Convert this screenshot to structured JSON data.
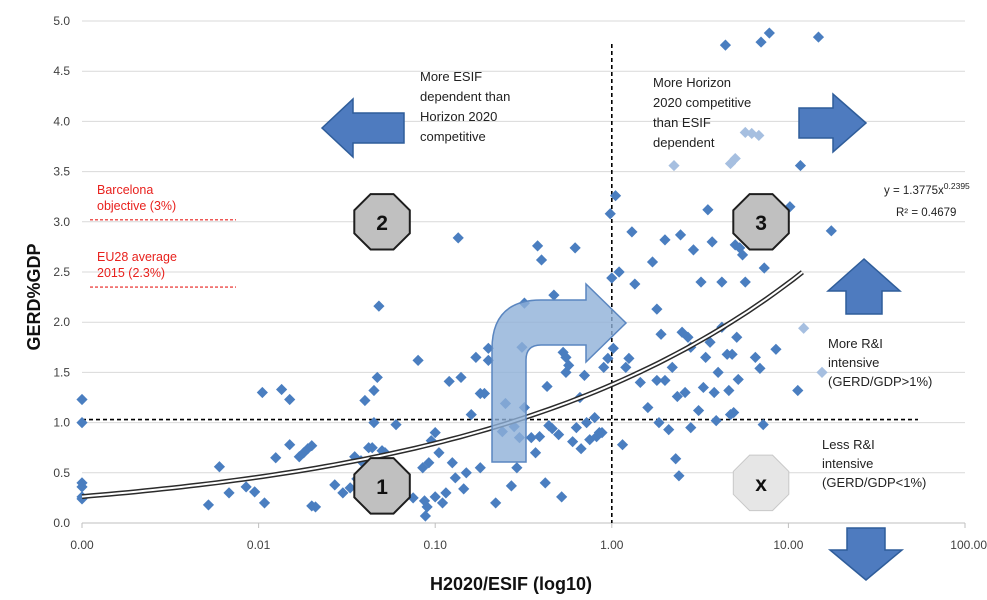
{
  "chart_data": {
    "type": "scatter",
    "xlabel": "H2020/ESIF (log10)",
    "ylabel": "GERD%GDP",
    "x_scale": "log",
    "xlim": [
      0.001,
      100
    ],
    "ylim": [
      0,
      5
    ],
    "x_ticks": [
      "0.00",
      "0.01",
      "0.10",
      "1.00",
      "10.00",
      "100.00"
    ],
    "y_ticks": [
      "0.0",
      "0.5",
      "1.0",
      "1.5",
      "2.0",
      "2.5",
      "3.0",
      "3.5",
      "4.0",
      "4.5",
      "5.0"
    ],
    "grid": "horizontal",
    "colors": {
      "points": "#4a7ec0",
      "light_points": "#a6bfe0",
      "trend": "#2b2b2b",
      "reference": "#e8211d",
      "arrow": "#4e7bbf",
      "gray_octagon": "#c0c0c0",
      "light_octagon": "#e6e6e6"
    },
    "trendline": {
      "equation": "y = 1.3775x",
      "exponent": "0.2395",
      "r2": "R² = 0.4679",
      "a": 1.3775,
      "b": 0.2395,
      "x_range": [
        0.001,
        12
      ]
    },
    "reference_lines": [
      {
        "label_lines": [
          "Barcelona",
          "objective  (3%)"
        ],
        "y": 3.02
      },
      {
        "label_lines": [
          "EU28 average",
          "2015 (2.3%)"
        ],
        "y": 2.35
      }
    ],
    "threshold_lines": {
      "x": 1.0,
      "y": 1.03
    },
    "annotations": {
      "top_left": [
        "More ESIF",
        "dependent than",
        "Horizon 2020",
        "competitive"
      ],
      "top_right": [
        "More Horizon",
        "2020 competitive",
        "than ESIF",
        "dependent"
      ],
      "more_intensive": [
        "More R&I",
        "intensive",
        "(GERD/GDP>1%)"
      ],
      "less_intensive": [
        "Less R&I",
        "intensive",
        "(GERD/GDP<1%)"
      ]
    },
    "regions": [
      {
        "label": "1",
        "x": 0.05,
        "y": 0.37,
        "style": "gray"
      },
      {
        "label": "2",
        "x": 0.05,
        "y": 3.0,
        "style": "gray"
      },
      {
        "label": "3",
        "x": 7.0,
        "y": 3.0,
        "style": "gray"
      },
      {
        "label": "x",
        "x": 7.0,
        "y": 0.4,
        "style": "light"
      }
    ],
    "points": [
      [
        0.001,
        1.23
      ],
      [
        0.001,
        1.0
      ],
      [
        0.001,
        0.4
      ],
      [
        0.001,
        0.36
      ],
      [
        0.001,
        0.26
      ],
      [
        0.001,
        0.24
      ],
      [
        0.0052,
        0.18
      ],
      [
        0.006,
        0.56
      ],
      [
        0.0068,
        0.3
      ],
      [
        0.0085,
        0.36
      ],
      [
        0.0095,
        0.31
      ],
      [
        0.0105,
        1.3
      ],
      [
        0.0108,
        0.2
      ],
      [
        0.0125,
        0.65
      ],
      [
        0.0135,
        1.33
      ],
      [
        0.015,
        1.23
      ],
      [
        0.015,
        0.78
      ],
      [
        0.017,
        0.66
      ],
      [
        0.018,
        0.7
      ],
      [
        0.019,
        0.74
      ],
      [
        0.02,
        0.77
      ],
      [
        0.02,
        0.17
      ],
      [
        0.021,
        0.16
      ],
      [
        0.027,
        0.38
      ],
      [
        0.03,
        0.3
      ],
      [
        0.033,
        0.35
      ],
      [
        0.035,
        0.66
      ],
      [
        0.036,
        0.44
      ],
      [
        0.038,
        0.62
      ],
      [
        0.04,
        1.22
      ],
      [
        0.042,
        0.75
      ],
      [
        0.044,
        0.75
      ],
      [
        0.045,
        1.0
      ],
      [
        0.045,
        1.32
      ],
      [
        0.047,
        1.45
      ],
      [
        0.048,
        2.16
      ],
      [
        0.05,
        0.72
      ],
      [
        0.052,
        0.7
      ],
      [
        0.054,
        0.46
      ],
      [
        0.058,
        0.3
      ],
      [
        0.06,
        0.98
      ],
      [
        0.065,
        0.32
      ],
      [
        0.075,
        0.25
      ],
      [
        0.08,
        1.62
      ],
      [
        0.085,
        0.55
      ],
      [
        0.087,
        0.22
      ],
      [
        0.088,
        0.07
      ],
      [
        0.09,
        0.16
      ],
      [
        0.092,
        0.6
      ],
      [
        0.095,
        0.82
      ],
      [
        0.1,
        0.9
      ],
      [
        0.1,
        0.26
      ],
      [
        0.105,
        0.7
      ],
      [
        0.11,
        0.2
      ],
      [
        0.115,
        0.3
      ],
      [
        0.12,
        1.41
      ],
      [
        0.125,
        0.6
      ],
      [
        0.13,
        0.45
      ],
      [
        0.135,
        2.84
      ],
      [
        0.14,
        1.45
      ],
      [
        0.145,
        0.34
      ],
      [
        0.15,
        0.5
      ],
      [
        0.16,
        1.08
      ],
      [
        0.17,
        1.65
      ],
      [
        0.18,
        0.55
      ],
      [
        0.18,
        1.29
      ],
      [
        0.19,
        1.29
      ],
      [
        0.2,
        1.62
      ],
      [
        0.2,
        1.74
      ],
      [
        0.22,
        0.2
      ],
      [
        0.24,
        0.91
      ],
      [
        0.25,
        1.19
      ],
      [
        0.27,
        0.37
      ],
      [
        0.28,
        0.96
      ],
      [
        0.29,
        0.55
      ],
      [
        0.3,
        0.85
      ],
      [
        0.31,
        1.75
      ],
      [
        0.32,
        2.19
      ],
      [
        0.32,
        1.15
      ],
      [
        0.35,
        0.85
      ],
      [
        0.37,
        0.7
      ],
      [
        0.38,
        2.76
      ],
      [
        0.39,
        0.86
      ],
      [
        0.4,
        2.62
      ],
      [
        0.42,
        0.4
      ],
      [
        0.43,
        1.36
      ],
      [
        0.44,
        0.97
      ],
      [
        0.46,
        0.94
      ],
      [
        0.47,
        2.27
      ],
      [
        0.5,
        0.88
      ],
      [
        0.52,
        0.26
      ],
      [
        0.53,
        1.7
      ],
      [
        0.55,
        1.65
      ],
      [
        0.55,
        1.5
      ],
      [
        0.57,
        1.57
      ],
      [
        0.6,
        0.81
      ],
      [
        0.62,
        2.74
      ],
      [
        0.63,
        0.95
      ],
      [
        0.66,
        1.25
      ],
      [
        0.67,
        0.74
      ],
      [
        0.7,
        1.47
      ],
      [
        0.72,
        1.0
      ],
      [
        0.75,
        0.83
      ],
      [
        0.8,
        1.05
      ],
      [
        0.82,
        0.86
      ],
      [
        0.85,
        0.9
      ],
      [
        0.88,
        0.9
      ],
      [
        0.9,
        1.55
      ],
      [
        0.95,
        1.64
      ],
      [
        0.98,
        3.08
      ],
      [
        1.0,
        2.44
      ],
      [
        1.02,
        1.74
      ],
      [
        1.05,
        3.26
      ],
      [
        1.1,
        2.5
      ],
      [
        1.15,
        0.78
      ],
      [
        1.2,
        1.55
      ],
      [
        1.25,
        1.64
      ],
      [
        1.3,
        2.9
      ],
      [
        1.35,
        2.38
      ],
      [
        1.45,
        1.4
      ],
      [
        1.6,
        1.15
      ],
      [
        1.7,
        2.6
      ],
      [
        1.8,
        2.13
      ],
      [
        1.8,
        1.42
      ],
      [
        1.85,
        1.0
      ],
      [
        1.9,
        1.88
      ],
      [
        2.0,
        2.82
      ],
      [
        2.0,
        1.42
      ],
      [
        2.1,
        0.93
      ],
      [
        2.2,
        1.55
      ],
      [
        2.3,
        0.64
      ],
      [
        2.35,
        1.26
      ],
      [
        2.4,
        0.47
      ],
      [
        2.45,
        2.87
      ],
      [
        2.5,
        1.9
      ],
      [
        2.6,
        1.3
      ],
      [
        2.7,
        1.85
      ],
      [
        2.8,
        0.95
      ],
      [
        2.8,
        1.75
      ],
      [
        2.9,
        2.72
      ],
      [
        3.1,
        1.12
      ],
      [
        3.2,
        2.4
      ],
      [
        3.3,
        1.35
      ],
      [
        3.4,
        1.65
      ],
      [
        3.5,
        3.12
      ],
      [
        3.6,
        1.8
      ],
      [
        3.7,
        2.8
      ],
      [
        3.8,
        1.3
      ],
      [
        3.9,
        1.02
      ],
      [
        4.0,
        1.5
      ],
      [
        4.2,
        2.4
      ],
      [
        4.2,
        1.95
      ],
      [
        4.4,
        4.76
      ],
      [
        4.5,
        1.68
      ],
      [
        4.6,
        1.32
      ],
      [
        4.7,
        1.08
      ],
      [
        4.8,
        1.68
      ],
      [
        4.9,
        1.1
      ],
      [
        5.0,
        2.77
      ],
      [
        5.1,
        1.85
      ],
      [
        5.2,
        1.43
      ],
      [
        5.3,
        2.74
      ],
      [
        5.5,
        2.67
      ],
      [
        5.7,
        2.4
      ],
      [
        6.2,
        3.05
      ],
      [
        6.5,
        1.65
      ],
      [
        6.9,
        1.54
      ],
      [
        7.0,
        4.79
      ],
      [
        7.2,
        0.98
      ],
      [
        7.3,
        2.54
      ],
      [
        7.5,
        2.98
      ],
      [
        7.8,
        4.88
      ],
      [
        8.5,
        1.73
      ],
      [
        10.2,
        3.15
      ],
      [
        11.3,
        1.32
      ],
      [
        11.7,
        3.56
      ],
      [
        14.8,
        4.84
      ],
      [
        17.5,
        2.91
      ]
    ],
    "light_points": [
      [
        2.25,
        3.56
      ],
      [
        4.7,
        3.58
      ],
      [
        5.0,
        3.63
      ],
      [
        5.7,
        3.89
      ],
      [
        6.2,
        3.88
      ],
      [
        6.8,
        3.86
      ],
      [
        12.2,
        1.94
      ],
      [
        15.5,
        1.5
      ]
    ]
  }
}
